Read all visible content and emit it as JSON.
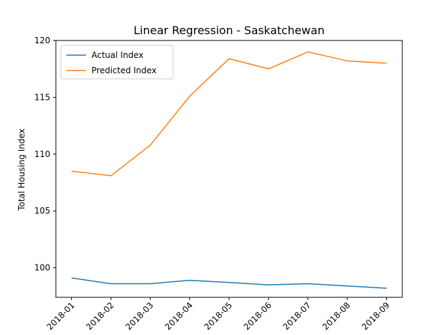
{
  "chart_data": {
    "type": "line",
    "title": "Linear Regression - Saskatchewan",
    "xlabel": "",
    "ylabel": "Total Housing Index",
    "categories": [
      "2018-01",
      "2018-02",
      "2018-03",
      "2018-04",
      "2018-05",
      "2018-06",
      "2018-07",
      "2018-08",
      "2018-09"
    ],
    "ylim": [
      97.4,
      120
    ],
    "yticks": [
      100,
      105,
      110,
      115,
      120
    ],
    "legend": "top-left",
    "grid": false,
    "series": [
      {
        "name": "Actual Index",
        "color": "#1f77b4",
        "values": [
          99.1,
          98.6,
          98.6,
          98.9,
          98.7,
          98.5,
          98.6,
          98.4,
          98.2
        ]
      },
      {
        "name": "Predicted Index",
        "color": "#ff7f0e",
        "values": [
          108.5,
          108.1,
          110.8,
          115.1,
          118.4,
          117.5,
          119.0,
          118.2,
          118.0
        ]
      }
    ]
  }
}
